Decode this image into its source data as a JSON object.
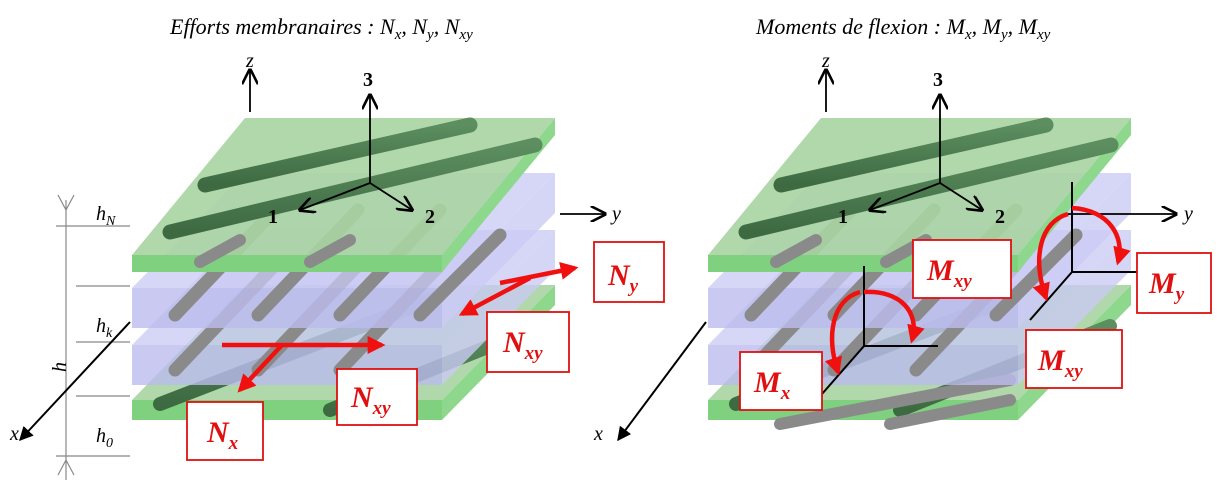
{
  "titles": {
    "left": "Efforts membranaires : N",
    "left_parts": [
      "x",
      ", N",
      "y",
      ", N",
      "xy"
    ],
    "right": "Moments de flexion : M",
    "right_parts": [
      "x",
      ", M",
      "y",
      ", M",
      "xy"
    ]
  },
  "axes": {
    "z": "z",
    "y": "y",
    "x": "x",
    "ortho_3": "3",
    "ortho_1": "1",
    "ortho_2": "2"
  },
  "dimensions": {
    "h": "h",
    "h_N_base": "h",
    "h_N_sub": "N",
    "h_k_base": "h",
    "h_k_sub": "k",
    "h_0_base": "h",
    "h_0_sub": "0"
  },
  "labels": {
    "N_y": {
      "base": "N",
      "sub": "y"
    },
    "N_xy_top": {
      "base": "N",
      "sub": "xy"
    },
    "N_xy_bottom": {
      "base": "N",
      "sub": "xy"
    },
    "N_x": {
      "base": "N",
      "sub": "x"
    },
    "M_xy_top": {
      "base": "M",
      "sub": "xy"
    },
    "M_y": {
      "base": "M",
      "sub": "y"
    },
    "M_x": {
      "base": "M",
      "sub": "x"
    },
    "M_xy_bottom": {
      "base": "M",
      "sub": "xy"
    }
  },
  "colors": {
    "green_top": "#a9d4a2",
    "green_side": "#7fd07f",
    "blue_top": "#c8c8f4",
    "blue_side": "#bcbcee",
    "fiber_green": "#4a7a4e",
    "fiber_gray": "#8a8a8a",
    "arrow_red": "#f01010",
    "box_border": "#e01010"
  }
}
